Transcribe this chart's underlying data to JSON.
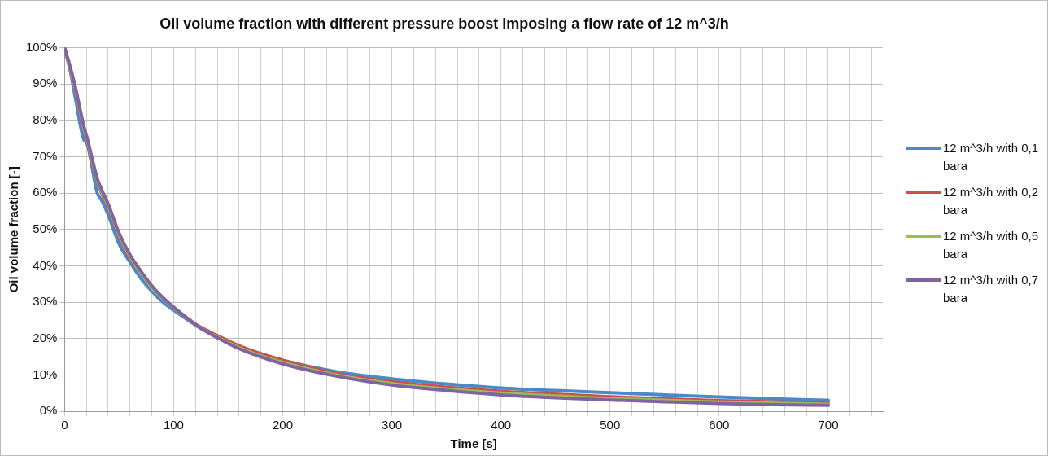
{
  "chart_data": {
    "type": "line",
    "title": "Oil volume fraction with different pressure boost imposing a flow rate of 12 m^3/h",
    "xlabel": "Time [s]",
    "ylabel": "Oil volume fraction [-]",
    "x": [
      0,
      5,
      10,
      18,
      20,
      30,
      34,
      40,
      50,
      60,
      70,
      80,
      90,
      100,
      120,
      140,
      160,
      180,
      200,
      250,
      300,
      350,
      400,
      450,
      500,
      550,
      600,
      650,
      700
    ],
    "series": [
      {
        "name": "12 m^3/h with 0,1 bara",
        "color": "#4a8ac8",
        "values": [
          100,
          94,
          86,
          74.5,
          74,
          60,
          58,
          54,
          46,
          41,
          36.5,
          33,
          30,
          27.8,
          23.7,
          20.4,
          17.8,
          15.8,
          14,
          10.8,
          8.9,
          7.5,
          6.4,
          5.7,
          5.1,
          4.5,
          3.9,
          3.4,
          3
        ]
      },
      {
        "name": "12 m^3/h with 0,2 bara",
        "color": "#c9504d",
        "values": [
          100,
          94,
          88,
          77,
          75,
          63,
          60,
          56,
          48,
          42,
          38,
          34,
          31,
          28.5,
          24,
          20.8,
          18,
          15.8,
          14,
          10.3,
          8.1,
          6.6,
          5.5,
          4.7,
          4,
          3.4,
          2.9,
          2.6,
          2.3
        ]
      },
      {
        "name": "12 m^3/h with 0,5 bara",
        "color": "#9bbb59",
        "values": [
          100,
          94.5,
          88.5,
          77.5,
          75.5,
          63.5,
          60.5,
          56.5,
          48.5,
          42.5,
          38,
          34,
          31,
          28.5,
          23.8,
          20.4,
          17.5,
          15.2,
          13.4,
          9.9,
          7.6,
          6.1,
          5,
          4.2,
          3.5,
          3,
          2.5,
          2.2,
          1.9
        ]
      },
      {
        "name": "12 m^3/h with 0,7 bara",
        "color": "#8064a2",
        "values": [
          100,
          95,
          89,
          78,
          76,
          64,
          61,
          57,
          49,
          43,
          38.5,
          34.5,
          31.3,
          28.6,
          23.8,
          20.2,
          17.2,
          14.9,
          13,
          9.6,
          7.2,
          5.7,
          4.5,
          3.7,
          3.1,
          2.6,
          2.1,
          1.8,
          1.6
        ]
      }
    ],
    "xlim": [
      0,
      750
    ],
    "xticks": [
      0,
      {
        "value": 20,
        "label": null
      },
      {
        "value": 40,
        "label": null
      },
      {
        "value": 60,
        "label": null
      },
      {
        "value": 80,
        "label": null
      },
      100,
      {
        "value": 120,
        "label": null
      },
      {
        "value": 140,
        "label": null
      },
      {
        "value": 160,
        "label": null
      },
      {
        "value": 180,
        "label": null
      },
      200,
      {
        "value": 220,
        "label": null
      },
      {
        "value": 240,
        "label": null
      },
      {
        "value": 260,
        "label": null
      },
      {
        "value": 280,
        "label": null
      },
      300,
      {
        "value": 320,
        "label": null
      },
      {
        "value": 340,
        "label": null
      },
      {
        "value": 360,
        "label": null
      },
      {
        "value": 380,
        "label": null
      },
      400,
      {
        "value": 420,
        "label": null
      },
      {
        "value": 440,
        "label": null
      },
      {
        "value": 460,
        "label": null
      },
      {
        "value": 480,
        "label": null
      },
      500,
      {
        "value": 520,
        "label": null
      },
      {
        "value": 540,
        "label": null
      },
      {
        "value": 560,
        "label": null
      },
      {
        "value": 580,
        "label": null
      },
      600,
      {
        "value": 620,
        "label": null
      },
      {
        "value": 640,
        "label": null
      },
      {
        "value": 660,
        "label": null
      },
      {
        "value": 680,
        "label": null
      },
      700,
      {
        "value": 720,
        "label": null
      },
      {
        "value": 740,
        "label": null
      }
    ],
    "ylim": [
      0,
      100
    ],
    "yticks": [
      {
        "value": 0,
        "label": "0%"
      },
      {
        "value": 10,
        "label": "10%"
      },
      {
        "value": 20,
        "label": "20%"
      },
      {
        "value": 30,
        "label": "30%"
      },
      {
        "value": 40,
        "label": "40%"
      },
      {
        "value": 50,
        "label": "50%"
      },
      {
        "value": 60,
        "label": "60%"
      },
      {
        "value": 70,
        "label": "70%"
      },
      {
        "value": 80,
        "label": "80%"
      },
      {
        "value": 90,
        "label": "90%"
      },
      {
        "value": 100,
        "label": "100%"
      }
    ],
    "grid": true,
    "legend": "right",
    "marker": "none",
    "line_style": "solid"
  }
}
